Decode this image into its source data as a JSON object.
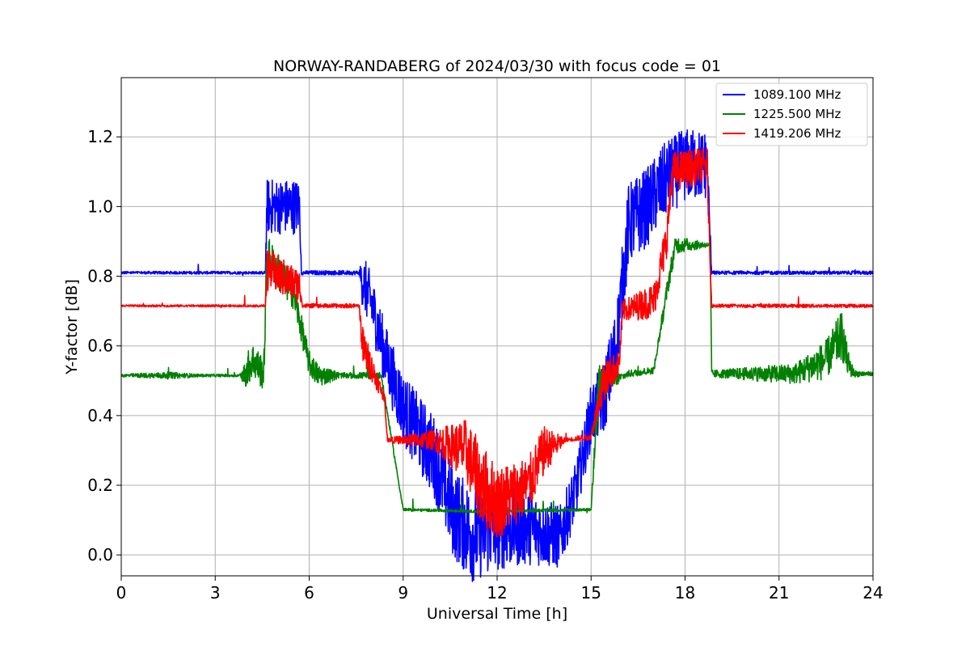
{
  "chart_data": {
    "type": "line",
    "title": "NORWAY-RANDABERG of 2024/03/30 with focus code = 01",
    "xlabel": "Universal Time [h]",
    "ylabel": "Y-factor [dB]",
    "xlim": [
      0,
      24
    ],
    "ylim": [
      -0.06,
      1.37
    ],
    "xticks": [
      0,
      3,
      6,
      9,
      12,
      15,
      18,
      21,
      24
    ],
    "yticks": [
      0.0,
      0.2,
      0.4,
      0.6,
      0.8,
      1.0,
      1.2
    ],
    "ytick_labels": [
      "0.0",
      "0.2",
      "0.4",
      "0.6",
      "0.8",
      "1.0",
      "1.2"
    ],
    "grid": true,
    "legend_position": "top-right",
    "series": [
      {
        "name": "1089.100 MHz",
        "color": "#0000ff",
        "profile": [
          [
            0,
            0.81
          ],
          [
            4.6,
            0.81
          ],
          [
            4.65,
            1.0
          ],
          [
            5.7,
            1.0
          ],
          [
            5.75,
            0.81
          ],
          [
            7.6,
            0.81
          ],
          [
            8.0,
            0.72
          ],
          [
            8.4,
            0.58
          ],
          [
            9.0,
            0.42
          ],
          [
            10.0,
            0.28
          ],
          [
            10.6,
            0.12
          ],
          [
            11.2,
            0.06
          ],
          [
            12.0,
            0.08
          ],
          [
            13.0,
            0.08
          ],
          [
            14.0,
            0.05
          ],
          [
            14.5,
            0.18
          ],
          [
            15.0,
            0.4
          ],
          [
            15.4,
            0.45
          ],
          [
            15.8,
            0.6
          ],
          [
            16.2,
            0.95
          ],
          [
            16.8,
            1.0
          ],
          [
            17.4,
            1.08
          ],
          [
            18.0,
            1.12
          ],
          [
            18.7,
            1.12
          ],
          [
            18.85,
            0.81
          ],
          [
            24,
            0.81
          ]
        ],
        "noise": [
          [
            0,
            0.004
          ],
          [
            4.6,
            0.004
          ],
          [
            4.65,
            0.08
          ],
          [
            5.7,
            0.08
          ],
          [
            5.75,
            0.006
          ],
          [
            7.6,
            0.006
          ],
          [
            7.7,
            0.08
          ],
          [
            11.2,
            0.14
          ],
          [
            14.6,
            0.08
          ],
          [
            16.0,
            0.12
          ],
          [
            18.7,
            0.1
          ],
          [
            18.85,
            0.005
          ],
          [
            24,
            0.005
          ]
        ]
      },
      {
        "name": "1225.500 MHz",
        "color": "#008000",
        "profile": [
          [
            0,
            0.515
          ],
          [
            3.9,
            0.515
          ],
          [
            4.2,
            0.56
          ],
          [
            4.55,
            0.52
          ],
          [
            4.65,
            0.86
          ],
          [
            5.5,
            0.75
          ],
          [
            6.0,
            0.55
          ],
          [
            6.3,
            0.515
          ],
          [
            7.8,
            0.515
          ],
          [
            8.3,
            0.515
          ],
          [
            9.0,
            0.13
          ],
          [
            11.5,
            0.125
          ],
          [
            15.0,
            0.13
          ],
          [
            15.25,
            0.5
          ],
          [
            15.7,
            0.5
          ],
          [
            16.2,
            0.52
          ],
          [
            17.0,
            0.53
          ],
          [
            17.5,
            0.8
          ],
          [
            17.7,
            0.89
          ],
          [
            18.8,
            0.89
          ],
          [
            18.85,
            0.52
          ],
          [
            21.5,
            0.52
          ],
          [
            22.5,
            0.56
          ],
          [
            23.0,
            0.63
          ],
          [
            23.2,
            0.55
          ],
          [
            23.4,
            0.52
          ],
          [
            24,
            0.52
          ]
        ],
        "noise": [
          [
            0,
            0.004
          ],
          [
            1.5,
            0.01
          ],
          [
            2.5,
            0.004
          ],
          [
            3.8,
            0.004
          ],
          [
            4.0,
            0.05
          ],
          [
            4.6,
            0.05
          ],
          [
            4.65,
            0.06
          ],
          [
            6.4,
            0.03
          ],
          [
            7.0,
            0.008
          ],
          [
            8.3,
            0.01
          ],
          [
            9.0,
            0.004
          ],
          [
            15.0,
            0.004
          ],
          [
            15.2,
            0.06
          ],
          [
            16.0,
            0.01
          ],
          [
            17.0,
            0.01
          ],
          [
            17.5,
            0.03
          ],
          [
            18.8,
            0.005
          ],
          [
            18.85,
            0.01
          ],
          [
            21.5,
            0.03
          ],
          [
            23.0,
            0.07
          ],
          [
            23.4,
            0.01
          ],
          [
            24,
            0.005
          ]
        ]
      },
      {
        "name": "1419.206 MHz",
        "color": "#ff0000",
        "profile": [
          [
            0,
            0.715
          ],
          [
            4.6,
            0.715
          ],
          [
            4.65,
            0.82
          ],
          [
            5.7,
            0.77
          ],
          [
            5.8,
            0.715
          ],
          [
            7.6,
            0.715
          ],
          [
            7.7,
            0.6
          ],
          [
            8.4,
            0.45
          ],
          [
            8.5,
            0.33
          ],
          [
            10.0,
            0.33
          ],
          [
            11.0,
            0.3
          ],
          [
            11.5,
            0.2
          ],
          [
            12.0,
            0.15
          ],
          [
            13.0,
            0.2
          ],
          [
            13.5,
            0.3
          ],
          [
            14.2,
            0.33
          ],
          [
            15.0,
            0.34
          ],
          [
            15.4,
            0.5
          ],
          [
            15.9,
            0.55
          ],
          [
            16.0,
            0.7
          ],
          [
            17.0,
            0.73
          ],
          [
            17.4,
            0.9
          ],
          [
            17.6,
            1.1
          ],
          [
            18.7,
            1.12
          ],
          [
            18.85,
            0.715
          ],
          [
            24,
            0.715
          ]
        ],
        "noise": [
          [
            0,
            0.003
          ],
          [
            4.6,
            0.003
          ],
          [
            4.65,
            0.06
          ],
          [
            5.7,
            0.05
          ],
          [
            5.8,
            0.006
          ],
          [
            7.6,
            0.006
          ],
          [
            7.7,
            0.06
          ],
          [
            8.5,
            0.006
          ],
          [
            10.0,
            0.03
          ],
          [
            11.5,
            0.12
          ],
          [
            13.5,
            0.07
          ],
          [
            14.2,
            0.005
          ],
          [
            15.0,
            0.01
          ],
          [
            15.4,
            0.06
          ],
          [
            16.0,
            0.03
          ],
          [
            17.4,
            0.06
          ],
          [
            18.7,
            0.05
          ],
          [
            18.85,
            0.005
          ],
          [
            24,
            0.005
          ]
        ]
      }
    ]
  }
}
